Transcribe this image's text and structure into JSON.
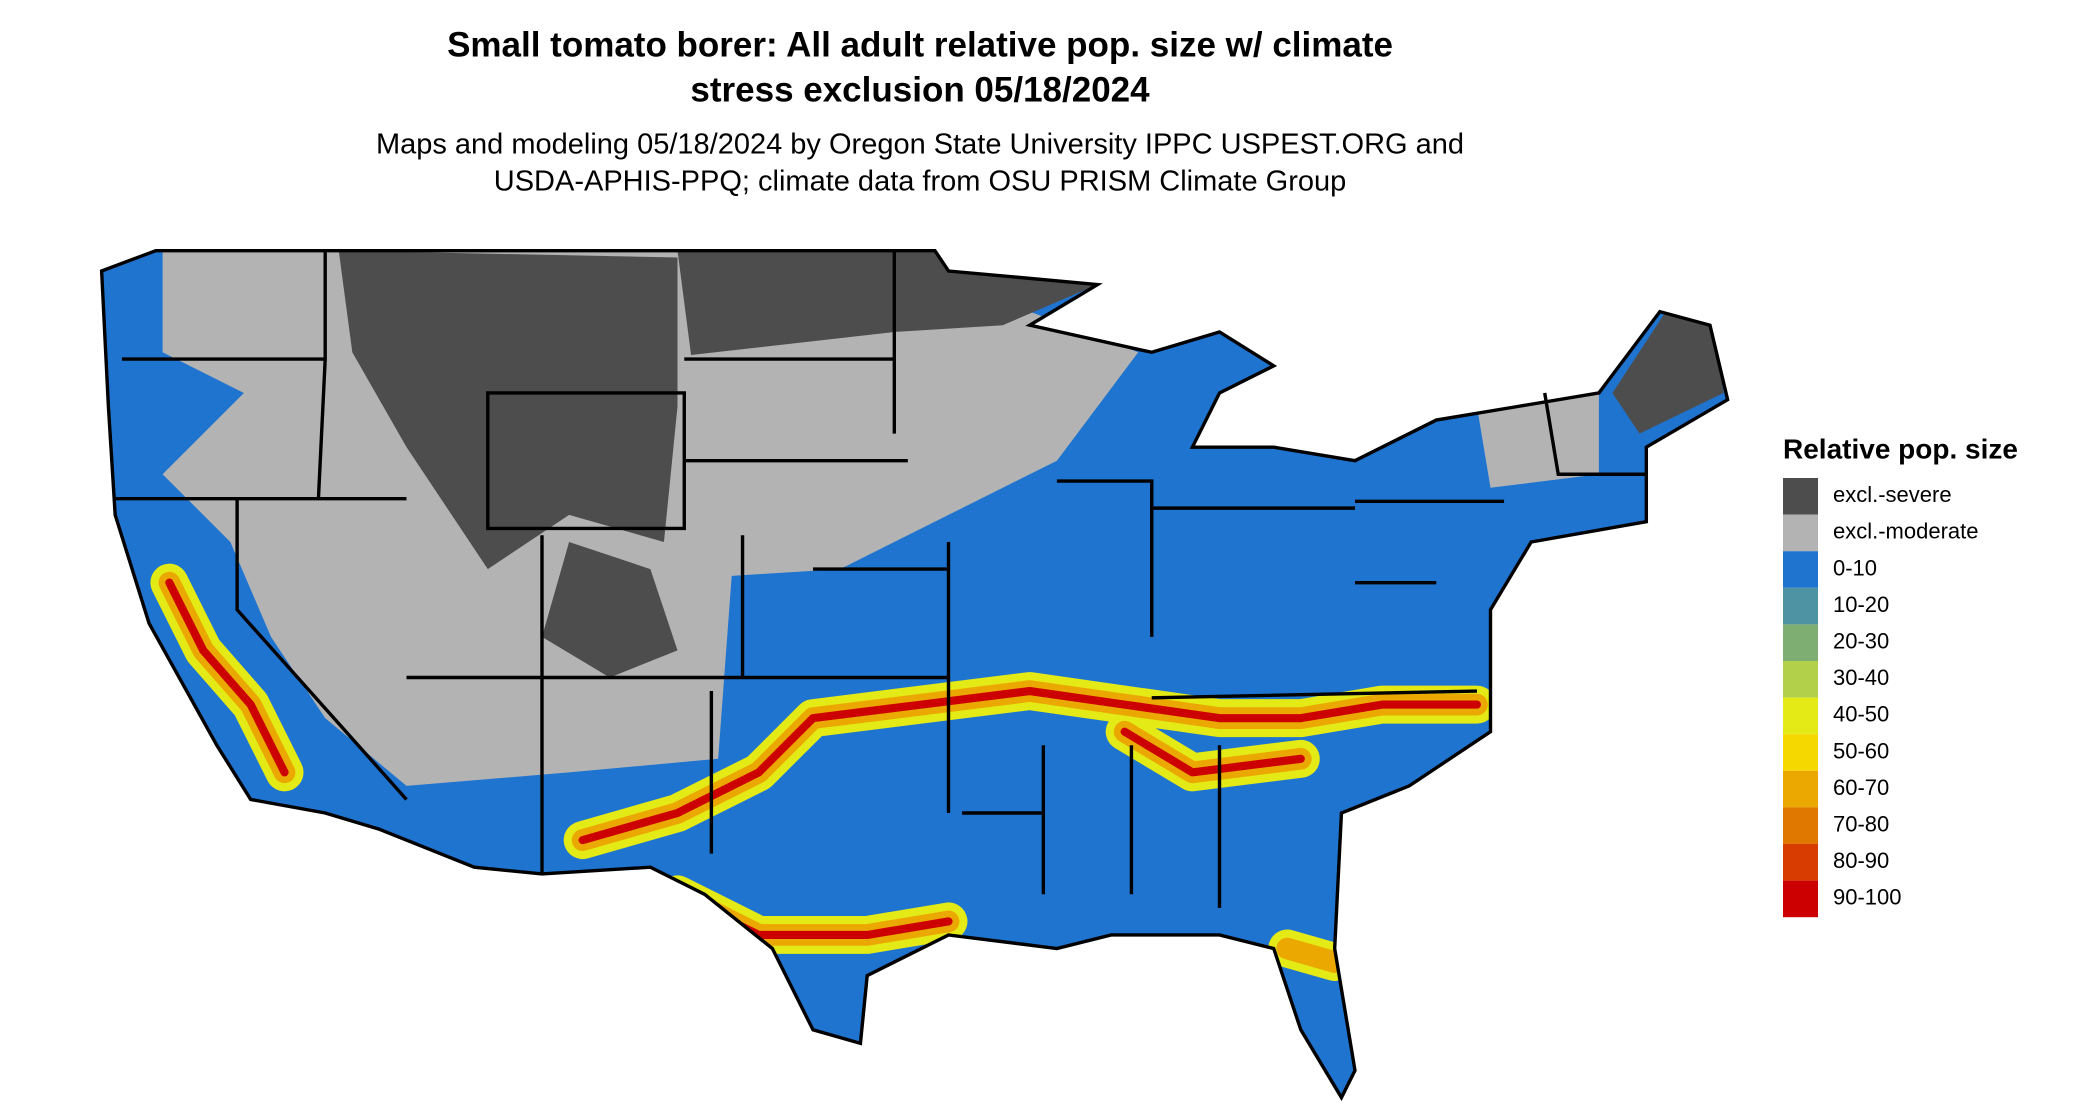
{
  "title": [
    "Small tomato borer: All adult relative pop. size w/ climate",
    "stress exclusion 05/18/2024"
  ],
  "subtitle": [
    "Maps and modeling 05/18/2024 by Oregon State University IPPC USPEST.ORG and",
    "USDA-APHIS-PPQ; climate data from OSU PRISM Climate Group"
  ],
  "legend": {
    "title": "Relative pop. size",
    "items": [
      {
        "label": "excl.-severe",
        "color": "#4d4d4d"
      },
      {
        "label": "excl.-moderate",
        "color": "#b3b3b3"
      },
      {
        "label": "0-10",
        "color": "#1f74d0"
      },
      {
        "label": "10-20",
        "color": "#4e93a3"
      },
      {
        "label": "20-30",
        "color": "#7fae72"
      },
      {
        "label": "30-40",
        "color": "#b3d04a"
      },
      {
        "label": "40-50",
        "color": "#e3ea16"
      },
      {
        "label": "50-60",
        "color": "#f5d800"
      },
      {
        "label": "60-70",
        "color": "#eba800"
      },
      {
        "label": "70-80",
        "color": "#e07800"
      },
      {
        "label": "80-90",
        "color": "#d93c00"
      },
      {
        "label": "90-100",
        "color": "#cc0000"
      }
    ]
  }
}
